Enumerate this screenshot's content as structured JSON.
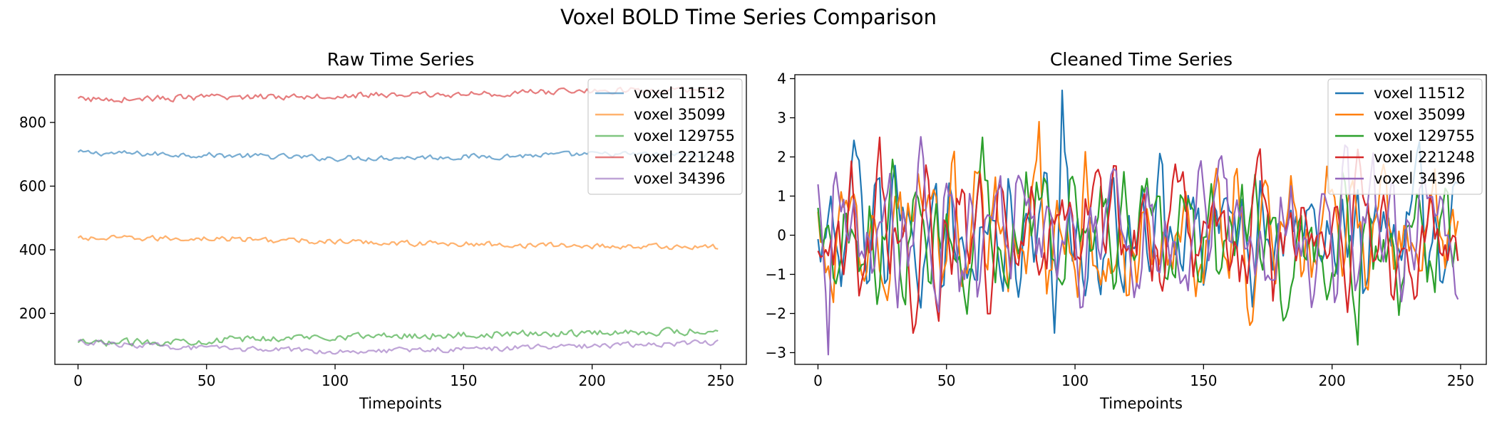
{
  "figure": {
    "title": "Voxel BOLD Time Series Comparison"
  },
  "chart_data": [
    {
      "type": "line",
      "title": "Raw Time Series",
      "xlabel": "Timepoints",
      "ylabel": "",
      "xlim": [
        -9,
        260
      ],
      "ylim": [
        40,
        950
      ],
      "xticks": [
        0,
        50,
        100,
        150,
        200,
        250
      ],
      "yticks": [
        200,
        400,
        600,
        800
      ],
      "grid": false,
      "legend": "top-right",
      "line_alpha": 0.6,
      "n_points": 250,
      "series": [
        {
          "name": "voxel 11512",
          "color": "#1f77b4",
          "profile": [
            [
              0,
              705
            ],
            [
              50,
              698
            ],
            [
              100,
              688
            ],
            [
              150,
              692
            ],
            [
              200,
              700
            ],
            [
              249,
              698
            ]
          ],
          "noise": 8
        },
        {
          "name": "voxel 35099",
          "color": "#ff7f0e",
          "profile": [
            [
              0,
              435
            ],
            [
              50,
              436
            ],
            [
              100,
              425
            ],
            [
              150,
              418
            ],
            [
              200,
              412
            ],
            [
              249,
              408
            ]
          ],
          "noise": 8
        },
        {
          "name": "voxel 129755",
          "color": "#2ca02c",
          "profile": [
            [
              0,
              105
            ],
            [
              50,
              115
            ],
            [
              100,
              128
            ],
            [
              150,
              132
            ],
            [
              200,
              140
            ],
            [
              249,
              145
            ]
          ],
          "noise": 10
        },
        {
          "name": "voxel 221248",
          "color": "#d62728",
          "profile": [
            [
              0,
              872
            ],
            [
              50,
              878
            ],
            [
              100,
              885
            ],
            [
              150,
              888
            ],
            [
              200,
              900
            ],
            [
              249,
              900
            ]
          ],
          "noise": 9
        },
        {
          "name": "voxel 34396",
          "color": "#9467bd",
          "profile": [
            [
              0,
              110
            ],
            [
              50,
              90
            ],
            [
              100,
              82
            ],
            [
              150,
              88
            ],
            [
              200,
              98
            ],
            [
              249,
              110
            ]
          ],
          "noise": 8
        }
      ]
    },
    {
      "type": "line",
      "title": "Cleaned Time Series",
      "xlabel": "Timepoints",
      "ylabel": "",
      "xlim": [
        -9,
        260
      ],
      "ylim": [
        -3.3,
        4.1
      ],
      "xticks": [
        0,
        50,
        100,
        150,
        200,
        250
      ],
      "yticks": [
        -3,
        -2,
        -1,
        0,
        1,
        2,
        3,
        4
      ],
      "grid": false,
      "legend": "top-right",
      "line_alpha": 1.0,
      "n_points": 250,
      "value_range": [
        -3.05,
        3.75
      ],
      "series": [
        {
          "name": "voxel 11512",
          "color": "#1f77b4",
          "start": -0.1,
          "min": -2.5,
          "max": 3.7
        },
        {
          "name": "voxel 35099",
          "color": "#ff7f0e",
          "start": 0.6,
          "min": -2.3,
          "max": 2.9
        },
        {
          "name": "voxel 129755",
          "color": "#2ca02c",
          "start": 0.7,
          "min": -2.8,
          "max": 2.5
        },
        {
          "name": "voxel 221248",
          "color": "#d62728",
          "start": -0.4,
          "min": -2.5,
          "max": 2.5
        },
        {
          "name": "voxel 34396",
          "color": "#9467bd",
          "start": 1.3,
          "min": -3.05,
          "max": 2.3
        }
      ]
    }
  ]
}
